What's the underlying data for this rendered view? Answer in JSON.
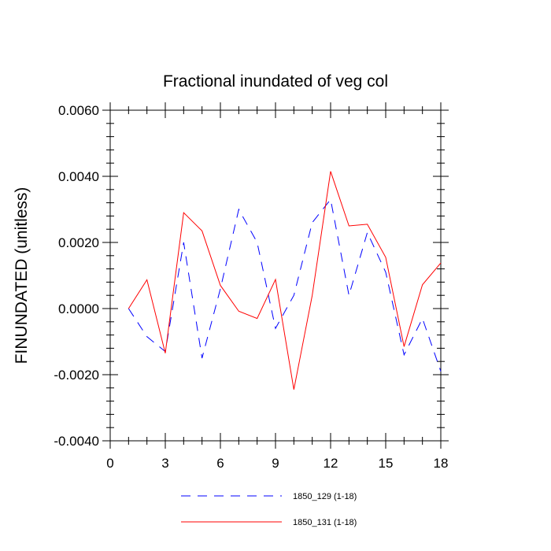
{
  "chart_data": {
    "type": "line",
    "title": "Fractional inundated of veg col",
    "xlabel": "",
    "ylabel": "FINUNDATED  (unitless)",
    "xlim": [
      0,
      18
    ],
    "ylim": [
      -0.004,
      0.006
    ],
    "xticks": [
      0,
      3,
      6,
      9,
      12,
      15,
      18
    ],
    "xtick_labels": [
      "0",
      "3",
      "6",
      "9",
      "12",
      "15",
      "18"
    ],
    "yticks": [
      -0.004,
      -0.002,
      0.0,
      0.002,
      0.004,
      0.006
    ],
    "ytick_labels": [
      "-0.0040",
      "-0.0020",
      "0.0000",
      "0.0020",
      "0.0040",
      "0.0060"
    ],
    "legend_position": "bottom",
    "series": [
      {
        "name": "1850_129 (1-18)",
        "color": "#0000ff",
        "style": "dashed",
        "x": [
          1,
          2,
          3,
          4,
          5,
          6,
          7,
          8,
          9,
          10,
          11,
          12,
          13,
          14,
          15,
          16,
          17,
          18
        ],
        "values": [
          0.0,
          -0.00085,
          -0.0013,
          0.002,
          -0.0015,
          0.0006,
          0.003,
          0.002,
          -0.0006,
          0.0004,
          0.0026,
          0.0033,
          0.0004,
          0.0023,
          0.0011,
          -0.0014,
          -0.0003,
          -0.0019
        ]
      },
      {
        "name": "1850_131 (1-18)",
        "color": "#ff0000",
        "style": "solid",
        "x": [
          1,
          2,
          3,
          4,
          5,
          6,
          7,
          8,
          9,
          10,
          11,
          12,
          13,
          14,
          15,
          16,
          17,
          18
        ],
        "values": [
          0.0,
          0.00087,
          -0.00135,
          0.0029,
          0.00235,
          0.0007,
          -8e-05,
          -0.0003,
          0.00088,
          -0.00245,
          0.0004,
          0.00415,
          0.0025,
          0.00255,
          0.00155,
          -0.00115,
          0.00072,
          0.00138
        ]
      }
    ]
  }
}
